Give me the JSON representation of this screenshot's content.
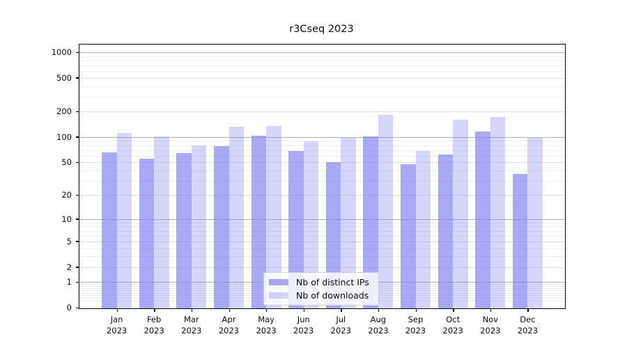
{
  "chart_data": {
    "type": "bar",
    "title": "r3Cseq 2023",
    "year_label": "2023",
    "categories": [
      "Jan",
      "Feb",
      "Mar",
      "Apr",
      "May",
      "Jun",
      "Jul",
      "Aug",
      "Sep",
      "Oct",
      "Nov",
      "Dec"
    ],
    "series": [
      {
        "name": "Nb of distinct IPs",
        "color": "rgba(120,120,238,0.64)",
        "color_hex_on_white": "#a6a6f3",
        "values": [
          67,
          56,
          65,
          80,
          105,
          70,
          51,
          104,
          48,
          63,
          118,
          37
        ]
      },
      {
        "name": "Nb of downloads",
        "color": "rgba(120,120,238,0.30)",
        "color_hex_on_white": "#d8d8f8",
        "values": [
          113,
          103,
          81,
          135,
          138,
          91,
          99,
          188,
          69,
          164,
          177,
          99
        ]
      }
    ],
    "yticks": [
      0,
      1,
      2,
      5,
      10,
      20,
      50,
      100,
      200,
      500,
      1000
    ],
    "ylabel": "",
    "xlabel": "",
    "yscale": "log1p",
    "ylim": [
      0,
      1240
    ],
    "grid": true,
    "legend_position": "lower center",
    "grid_major_color": "#b3b3b3",
    "grid_minor_color": "#ededed"
  }
}
